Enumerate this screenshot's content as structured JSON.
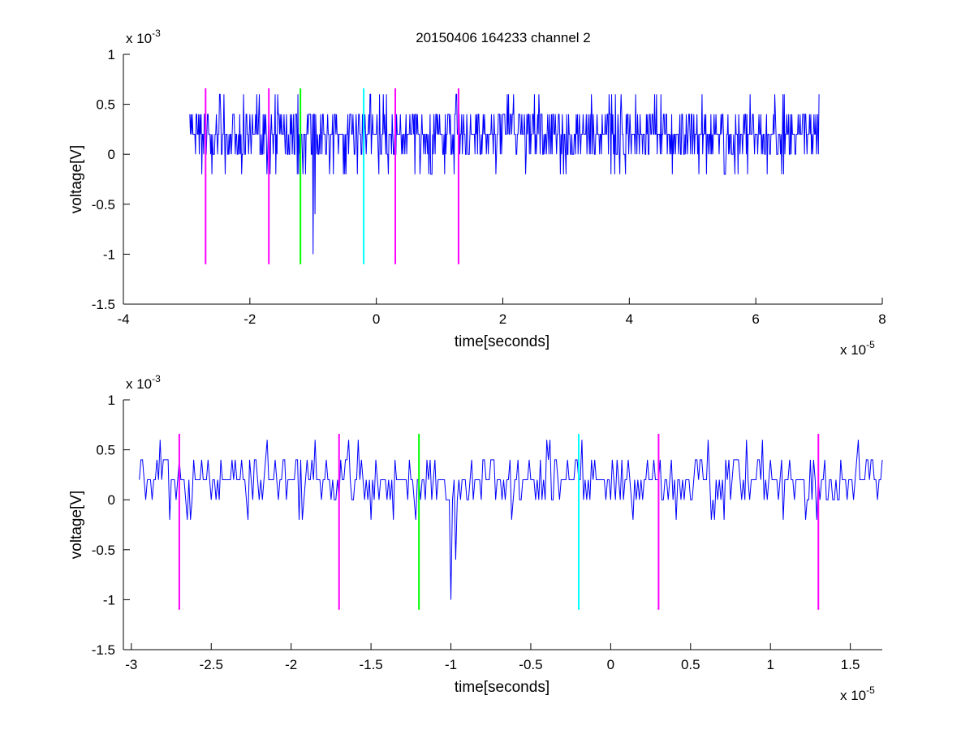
{
  "title": "20150406 164233 channel 2",
  "chart_data": [
    {
      "type": "line",
      "xlabel": "time[seconds]",
      "ylabel": "voltage[V]",
      "x_multiplier_label": "x 10",
      "x_multiplier_exp": "-5",
      "y_multiplier_label": "x 10",
      "y_multiplier_exp": "-3",
      "xlim": [
        -4e-05,
        8e-05
      ],
      "ylim": [
        -0.0015,
        0.001
      ],
      "xticks": [
        -4e-05,
        -2e-05,
        0,
        2e-05,
        4e-05,
        6e-05,
        8e-05
      ],
      "xtick_labels": [
        "-4",
        "-2",
        "0",
        "2",
        "4",
        "6",
        "8"
      ],
      "yticks": [
        0.001,
        0.0005,
        0,
        -0.0005,
        -0.001,
        -0.0015
      ],
      "ytick_labels": [
        "1",
        "0.5",
        "0",
        "-0.5",
        "-1",
        "-1.5"
      ],
      "grid": false,
      "signal": {
        "name": "",
        "color": "#0000ff",
        "x_start": -2.95e-05,
        "x_end": 7e-05,
        "sample_step": 1e-07,
        "baseline": 0.0002,
        "levels": [
          0,
          0.0002,
          0.0004,
          -0.0002,
          0.0006
        ],
        "spikes": [
          {
            "x": -1e-05,
            "y": -0.001
          },
          {
            "x": -9.7e-06,
            "y": -0.0006
          },
          {
            "x": -2.6e-05,
            "y": -0.0002
          },
          {
            "x": -1.85e-05,
            "y": 0.0006
          },
          {
            "x": -1.6e-05,
            "y": 0.0006
          },
          {
            "x": 2.5e-05,
            "y": 0.0006
          },
          {
            "x": 3.4e-05,
            "y": 0.0006
          },
          {
            "x": 6.3e-05,
            "y": 0.0006
          }
        ]
      },
      "markers": [
        {
          "x": -2.7e-05,
          "y0": -0.0011,
          "y1": 0.00066,
          "color": "#ff00ff"
        },
        {
          "x": -1.7e-05,
          "y0": -0.0011,
          "y1": 0.00066,
          "color": "#ff00ff"
        },
        {
          "x": -1.2e-05,
          "y0": -0.0011,
          "y1": 0.00066,
          "color": "#00ff00"
        },
        {
          "x": -2e-06,
          "y0": -0.0011,
          "y1": 0.00066,
          "color": "#00ffff"
        },
        {
          "x": 3e-06,
          "y0": -0.0011,
          "y1": 0.00066,
          "color": "#ff00ff"
        },
        {
          "x": 1.3e-05,
          "y0": -0.0011,
          "y1": 0.00066,
          "color": "#ff00ff"
        }
      ]
    },
    {
      "type": "line",
      "xlabel": "time[seconds]",
      "ylabel": "voltage[V]",
      "x_multiplier_label": "x 10",
      "x_multiplier_exp": "-5",
      "y_multiplier_label": "x 10",
      "y_multiplier_exp": "-3",
      "xlim": [
        -3.05e-05,
        1.7e-05
      ],
      "ylim": [
        -0.0015,
        0.001
      ],
      "xticks": [
        -3e-05,
        -2.5e-05,
        -2e-05,
        -1.5e-05,
        -1e-05,
        -5e-06,
        0,
        5e-06,
        1e-05,
        1.5e-05
      ],
      "xtick_labels": [
        "-3",
        "-2.5",
        "-2",
        "-1.5",
        "-1",
        "-0.5",
        "0",
        "0.5",
        "1",
        "1.5"
      ],
      "yticks": [
        0.001,
        0.0005,
        0,
        -0.0005,
        -0.001,
        -0.0015
      ],
      "ytick_labels": [
        "1",
        "0.5",
        "0",
        "-0.5",
        "-1",
        "-1.5"
      ],
      "grid": false,
      "signal": {
        "name": "",
        "color": "#0000ff",
        "x_start": -2.95e-05,
        "x_end": 1.7e-05,
        "sample_step": 1e-07,
        "baseline": 0.0002,
        "levels": [
          0,
          0.0002,
          0.0004,
          -0.0002,
          0.0006
        ],
        "spikes": [
          {
            "x": -1e-05,
            "y": -0.001
          },
          {
            "x": -9.7e-06,
            "y": -0.0006
          },
          {
            "x": -2.65e-05,
            "y": -0.0002
          },
          {
            "x": -1.85e-05,
            "y": 0.0006
          },
          {
            "x": -1.58e-05,
            "y": 0.0006
          },
          {
            "x": 9.5e-06,
            "y": 0.0006
          }
        ]
      },
      "markers": [
        {
          "x": -2.7e-05,
          "y0": -0.0011,
          "y1": 0.00066,
          "color": "#ff00ff"
        },
        {
          "x": -1.7e-05,
          "y0": -0.0011,
          "y1": 0.00066,
          "color": "#ff00ff"
        },
        {
          "x": -1.2e-05,
          "y0": -0.0011,
          "y1": 0.00066,
          "color": "#00ff00"
        },
        {
          "x": -2e-06,
          "y0": -0.0011,
          "y1": 0.00066,
          "color": "#00ffff"
        },
        {
          "x": 3e-06,
          "y0": -0.0011,
          "y1": 0.00066,
          "color": "#ff00ff"
        },
        {
          "x": 1.3e-05,
          "y0": -0.0011,
          "y1": 0.00066,
          "color": "#ff00ff"
        }
      ]
    }
  ]
}
